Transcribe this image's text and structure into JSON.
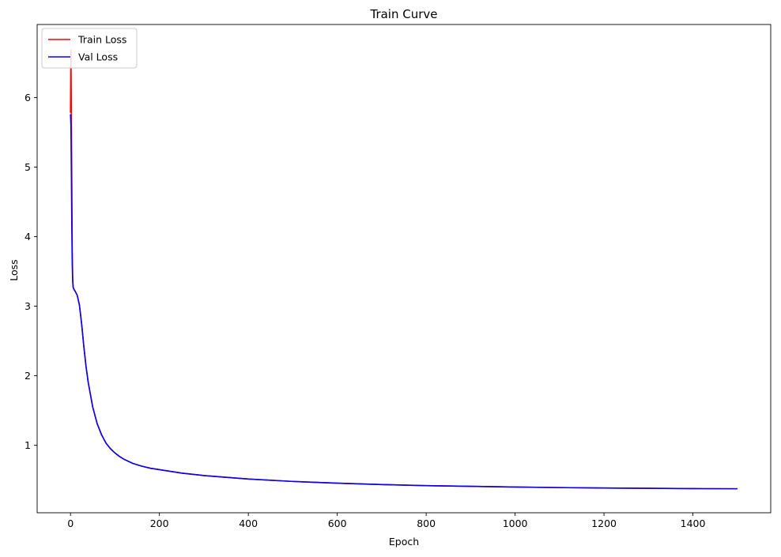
{
  "chart_data": {
    "type": "line",
    "title": "Train Curve",
    "xlabel": "Epoch",
    "ylabel": "Loss",
    "xlim": [
      -75,
      1575
    ],
    "ylim": [
      0.03,
      7.05
    ],
    "xticks": [
      0,
      200,
      400,
      600,
      800,
      1000,
      1200,
      1400
    ],
    "yticks": [
      1,
      2,
      3,
      4,
      5,
      6
    ],
    "grid": false,
    "legend_position": "upper-left",
    "series": [
      {
        "name": "Train Loss",
        "color": "#ff0000",
        "x": [
          0,
          1,
          2,
          3,
          4,
          5,
          6,
          8,
          10,
          15,
          20,
          25,
          30,
          35,
          40,
          50,
          60,
          70,
          80,
          90,
          100,
          110,
          120,
          140,
          160,
          180,
          200,
          250,
          300,
          400,
          500,
          600,
          700,
          800,
          900,
          1000,
          1100,
          1200,
          1300,
          1400,
          1500
        ],
        "y": [
          5.78,
          6.68,
          5.75,
          4.8,
          3.8,
          3.4,
          3.27,
          3.24,
          3.22,
          3.16,
          3.02,
          2.75,
          2.42,
          2.13,
          1.9,
          1.55,
          1.31,
          1.15,
          1.03,
          0.95,
          0.89,
          0.84,
          0.8,
          0.74,
          0.7,
          0.67,
          0.65,
          0.6,
          0.565,
          0.515,
          0.48,
          0.455,
          0.435,
          0.42,
          0.41,
          0.4,
          0.392,
          0.386,
          0.381,
          0.377,
          0.375
        ]
      },
      {
        "name": "Val Loss",
        "color": "#0000ff",
        "x": [
          0,
          1,
          2,
          3,
          4,
          5,
          6,
          8,
          10,
          15,
          20,
          25,
          30,
          35,
          40,
          50,
          60,
          70,
          80,
          90,
          100,
          110,
          120,
          140,
          160,
          180,
          200,
          250,
          300,
          400,
          500,
          600,
          700,
          800,
          900,
          1000,
          1100,
          1200,
          1300,
          1400,
          1500
        ],
        "y": [
          5.76,
          5.6,
          4.9,
          4.1,
          3.6,
          3.35,
          3.27,
          3.24,
          3.22,
          3.16,
          3.02,
          2.75,
          2.42,
          2.13,
          1.9,
          1.55,
          1.31,
          1.15,
          1.03,
          0.95,
          0.89,
          0.84,
          0.8,
          0.74,
          0.7,
          0.67,
          0.65,
          0.6,
          0.565,
          0.515,
          0.48,
          0.455,
          0.435,
          0.42,
          0.41,
          0.4,
          0.392,
          0.386,
          0.381,
          0.377,
          0.375
        ]
      }
    ]
  }
}
